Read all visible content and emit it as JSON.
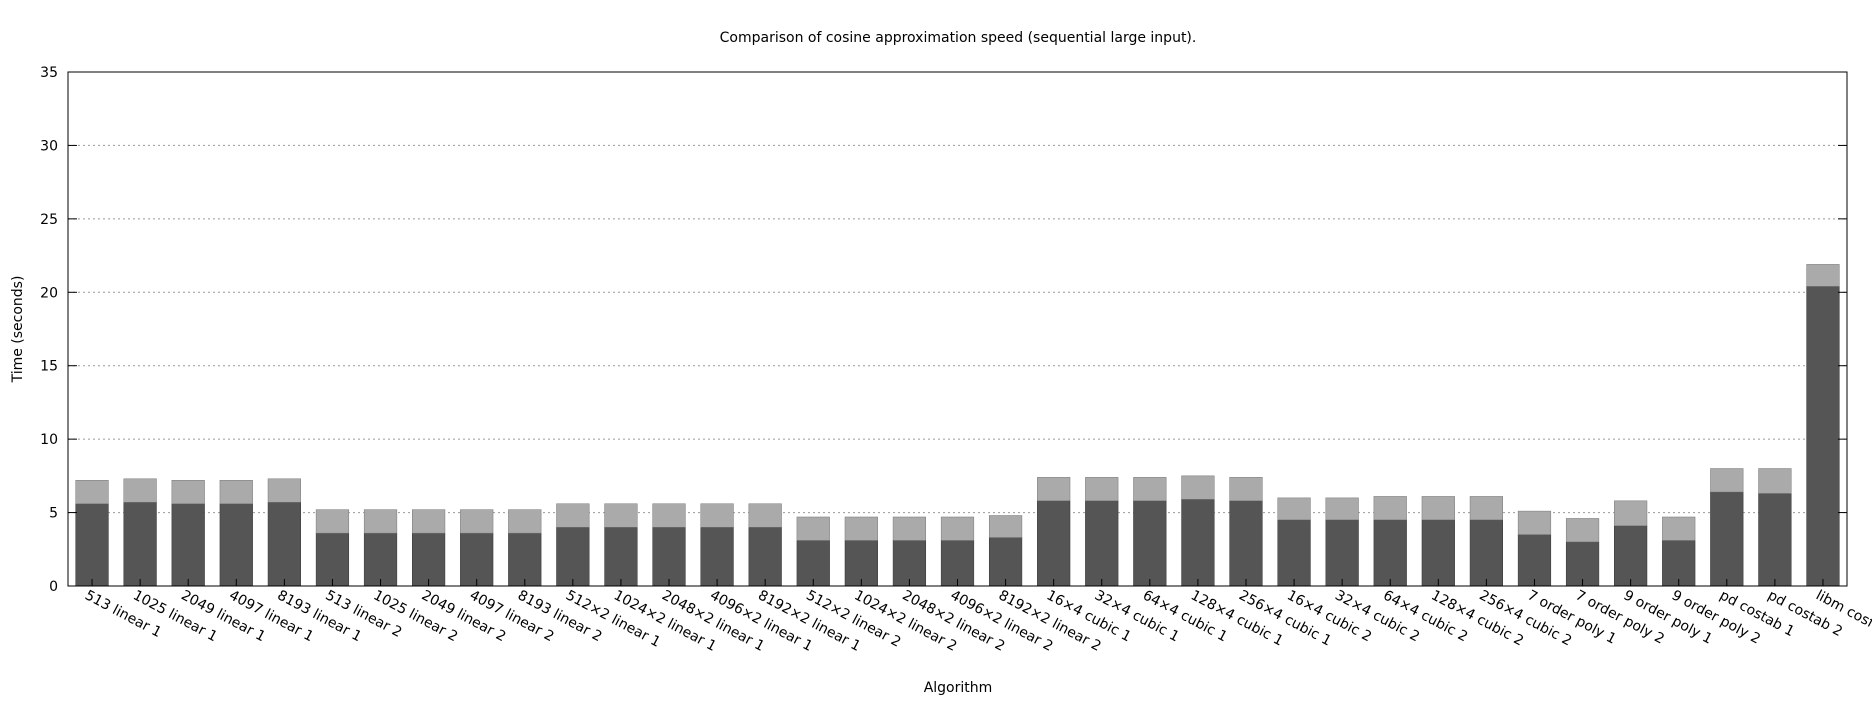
{
  "chart_data": {
    "type": "bar",
    "stacked": true,
    "title": "Comparison of cosine approximation speed (sequential large input).",
    "xlabel": "Algorithm",
    "ylabel": "Time (seconds)",
    "ylim": [
      0,
      35
    ],
    "yticks": [
      0,
      5,
      10,
      15,
      20,
      25,
      30,
      35
    ],
    "grid": true,
    "colors": {
      "lower": "#555555",
      "upper": "#aaaaaa"
    },
    "categories": [
      "513 linear 1",
      "1025 linear 1",
      "2049 linear 1",
      "4097 linear 1",
      "8193 linear 1",
      "513 linear 2",
      "1025 linear 2",
      "2049 linear 2",
      "4097 linear 2",
      "8193 linear 2",
      "512×2 linear 1",
      "1024×2 linear 1",
      "2048×2 linear 1",
      "4096×2 linear 1",
      "8192×2 linear 1",
      "512×2 linear 2",
      "1024×2 linear 2",
      "2048×2 linear 2",
      "4096×2 linear 2",
      "8192×2 linear 2",
      "16×4 cubic 1",
      "32×4 cubic 1",
      "64×4 cubic 1",
      "128×4 cubic 1",
      "256×4 cubic 1",
      "16×4 cubic 2",
      "32×4 cubic 2",
      "64×4 cubic 2",
      "128×4 cubic 2",
      "256×4 cubic 2",
      "7 order poly 1",
      "7 order poly 2",
      "9 order poly 1",
      "9 order poly 2",
      "pd costab 1",
      "pd costab 2",
      "libm cosf()"
    ],
    "series": [
      {
        "values": [
          5.6,
          5.7,
          5.6,
          5.6,
          5.7,
          3.6,
          3.6,
          3.6,
          3.6,
          3.6,
          4.0,
          4.0,
          4.0,
          4.0,
          4.0,
          3.1,
          3.1,
          3.1,
          3.1,
          3.3,
          5.8,
          5.8,
          5.8,
          5.9,
          5.8,
          4.5,
          4.5,
          4.5,
          4.5,
          4.5,
          3.5,
          3.0,
          4.1,
          3.1,
          6.4,
          6.3,
          20.4
        ]
      },
      {
        "values": [
          1.6,
          1.6,
          1.6,
          1.6,
          1.6,
          1.6,
          1.6,
          1.6,
          1.6,
          1.6,
          1.6,
          1.6,
          1.6,
          1.6,
          1.6,
          1.6,
          1.6,
          1.6,
          1.6,
          1.5,
          1.6,
          1.6,
          1.6,
          1.6,
          1.6,
          1.5,
          1.5,
          1.6,
          1.6,
          1.6,
          1.6,
          1.6,
          1.7,
          1.6,
          1.6,
          1.7,
          1.5
        ]
      }
    ]
  }
}
